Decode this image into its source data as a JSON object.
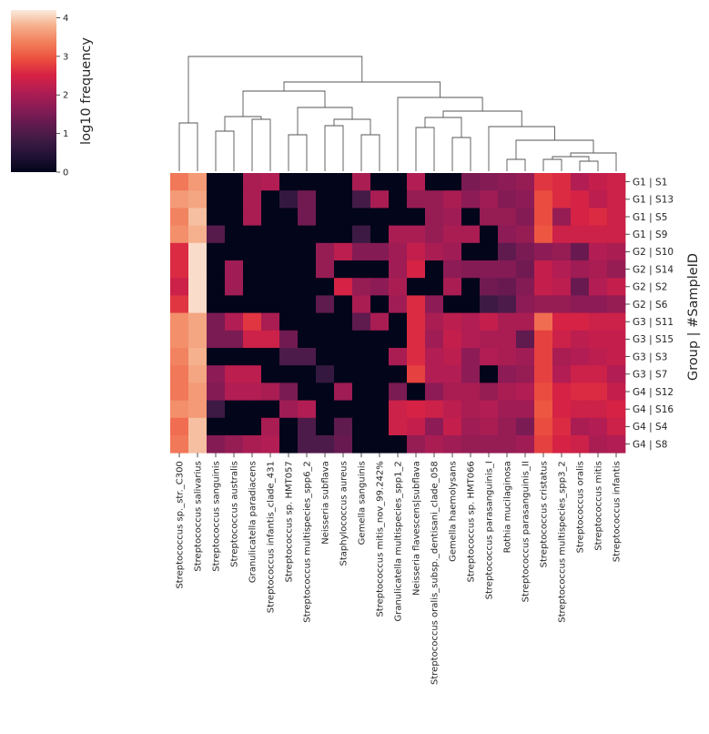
{
  "chart_data": {
    "type": "heatmap",
    "title": "",
    "xlabel": "",
    "ylabel": "Group | #SampleID",
    "colorbar": {
      "label": "log10 frequency",
      "range": [
        0,
        4.2
      ],
      "ticks": [
        "0",
        "1",
        "2",
        "3",
        "4"
      ],
      "colormap": "rocket"
    },
    "columns": [
      "Streptococcus sp._str._C300",
      "Streptococcus salivarius",
      "Streptococcus sanguinis",
      "Streptococcus australis",
      "Granulicatella paradiacens",
      "Streptococcus infantis_clade_431",
      "Streptococcus sp. HMT057",
      "Streptococcus multispecies_spp6_2",
      "Neisseria subflava",
      "Staphylococcus aureus",
      "Gemella sanguinis",
      "Streptococcus mitis_nov_99.242%",
      "Granulicatella multispecies_spp1_2",
      "Neisseria flavescens|subflava",
      "Streptococcus oralis_subsp._dentisani_clade_058",
      "Gemella haemolysans",
      "Streptococcus sp. HMT066",
      "Streptococcus parasanguinis_I",
      "Rothia mucilaginosa",
      "Streptococcus parasanguinis_II",
      "Streptococcus cristatus",
      "Streptococcus multispecies_spp3_2",
      "Streptococcus oralis",
      "Streptococcus mitis",
      "Streptococcus infantis"
    ],
    "rows": [
      "G1 | S1",
      "G1 | S13",
      "G1 | S5",
      "G1 | S9",
      "G2 | S10",
      "G2 | S14",
      "G2 | S2",
      "G2 | S6",
      "G3 | S11",
      "G3 | S15",
      "G3 | S3",
      "G3 | S7",
      "G4 | S12",
      "G4 | S16",
      "G4 | S4",
      "G4 | S8"
    ],
    "values": [
      [
        3.3,
        3.6,
        0,
        0,
        2.0,
        2.1,
        0,
        0,
        0,
        0,
        2.0,
        0,
        0,
        2.1,
        0,
        0,
        1.5,
        1.6,
        1.7,
        1.8,
        2.7,
        2.6,
        2.1,
        2.3,
        2.4
      ],
      [
        3.6,
        3.7,
        0,
        0,
        2.0,
        0,
        0.7,
        1.4,
        0,
        0,
        0.9,
        2.0,
        0,
        1.8,
        1.8,
        2.0,
        1.7,
        1.9,
        1.6,
        1.7,
        2.9,
        2.6,
        2.5,
        2.2,
        2.4
      ],
      [
        3.4,
        3.9,
        0,
        0,
        2.0,
        0,
        0,
        1.4,
        0,
        0,
        0,
        0,
        0,
        0,
        1.8,
        1.9,
        0,
        1.8,
        1.8,
        1.6,
        2.9,
        1.8,
        2.5,
        2.6,
        2.4
      ],
      [
        3.5,
        3.8,
        1.1,
        0,
        0,
        0,
        0,
        0,
        0,
        0,
        0.8,
        0,
        2.0,
        2.0,
        1.8,
        2.0,
        2.0,
        0,
        1.7,
        1.8,
        3.0,
        2.4,
        2.4,
        2.4,
        2.4
      ],
      [
        2.6,
        4.1,
        0,
        0,
        0,
        0,
        0,
        0,
        1.8,
        2.2,
        1.6,
        1.6,
        1.9,
        2.3,
        2.0,
        1.9,
        0,
        0,
        1.2,
        1.5,
        1.7,
        1.8,
        1.3,
        2.1,
        2.0
      ],
      [
        2.6,
        4.1,
        0,
        1.9,
        0,
        0,
        0,
        0,
        1.8,
        0,
        0,
        0,
        1.9,
        2.5,
        0,
        1.7,
        1.6,
        1.6,
        1.6,
        1.4,
        2.3,
        2.1,
        1.9,
        2.0,
        1.8
      ],
      [
        2.4,
        4.1,
        0,
        1.9,
        0,
        0,
        0,
        0,
        0,
        2.5,
        1.8,
        1.7,
        2.0,
        0,
        0,
        2.0,
        0,
        1.4,
        1.3,
        1.6,
        2.3,
        2.2,
        1.3,
        2.1,
        2.3
      ],
      [
        2.7,
        4.1,
        0,
        0,
        0,
        0,
        0,
        0,
        1.2,
        0,
        2.0,
        0,
        1.9,
        2.6,
        1.7,
        0,
        0,
        0.8,
        1.0,
        1.7,
        1.8,
        1.8,
        1.7,
        1.7,
        1.8
      ],
      [
        3.5,
        3.7,
        1.5,
        2.1,
        2.7,
        2.0,
        0,
        0,
        0,
        0,
        1.2,
        2.0,
        0,
        2.6,
        2.0,
        2.2,
        2.1,
        2.3,
        2.0,
        2.0,
        3.2,
        2.5,
        2.5,
        2.4,
        2.4
      ],
      [
        3.5,
        3.7,
        1.5,
        1.5,
        2.4,
        2.4,
        1.4,
        0,
        0,
        0,
        0,
        0,
        0,
        2.6,
        1.9,
        2.3,
        2.1,
        2.0,
        2.0,
        1.2,
        2.8,
        2.4,
        2.2,
        2.3,
        2.3
      ],
      [
        3.4,
        3.8,
        0,
        0,
        0,
        0,
        1.0,
        1.0,
        0,
        0,
        0,
        0,
        2.0,
        2.6,
        2.1,
        2.2,
        1.7,
        2.1,
        2.0,
        1.9,
        2.8,
        2.0,
        2.1,
        2.2,
        2.3
      ],
      [
        3.3,
        3.7,
        1.7,
        2.2,
        2.2,
        0,
        0,
        0,
        0.7,
        0,
        0,
        0,
        0,
        2.8,
        2.1,
        2.1,
        1.7,
        0,
        1.7,
        1.8,
        2.8,
        2.1,
        2.4,
        2.4,
        2.1
      ],
      [
        3.3,
        3.6,
        1.6,
        2.1,
        2.1,
        2.0,
        1.5,
        0,
        0,
        1.9,
        0,
        0,
        1.5,
        0,
        1.7,
        2.0,
        2.0,
        1.8,
        2.0,
        2.1,
        2.9,
        2.5,
        2.6,
        2.6,
        2.3
      ],
      [
        3.5,
        3.6,
        0.8,
        0,
        0,
        0,
        1.9,
        2.1,
        0,
        0,
        0,
        0,
        2.4,
        2.5,
        2.4,
        2.2,
        2.0,
        2.1,
        1.9,
        1.9,
        3.0,
        2.5,
        2.4,
        2.4,
        2.5
      ],
      [
        3.2,
        3.9,
        0,
        0,
        0,
        2.0,
        0,
        1.0,
        0,
        1.2,
        0,
        0,
        2.4,
        2.3,
        1.7,
        2.3,
        1.9,
        2.0,
        1.8,
        1.5,
        2.9,
        2.6,
        2.0,
        2.1,
        2.4
      ],
      [
        3.3,
        3.9,
        1.6,
        1.8,
        2.0,
        2.1,
        0,
        1.0,
        1.0,
        1.3,
        0,
        0,
        0,
        1.8,
        2.0,
        1.9,
        1.8,
        1.8,
        1.8,
        1.9,
        2.8,
        2.5,
        2.4,
        2.0,
        2.1
      ]
    ]
  }
}
